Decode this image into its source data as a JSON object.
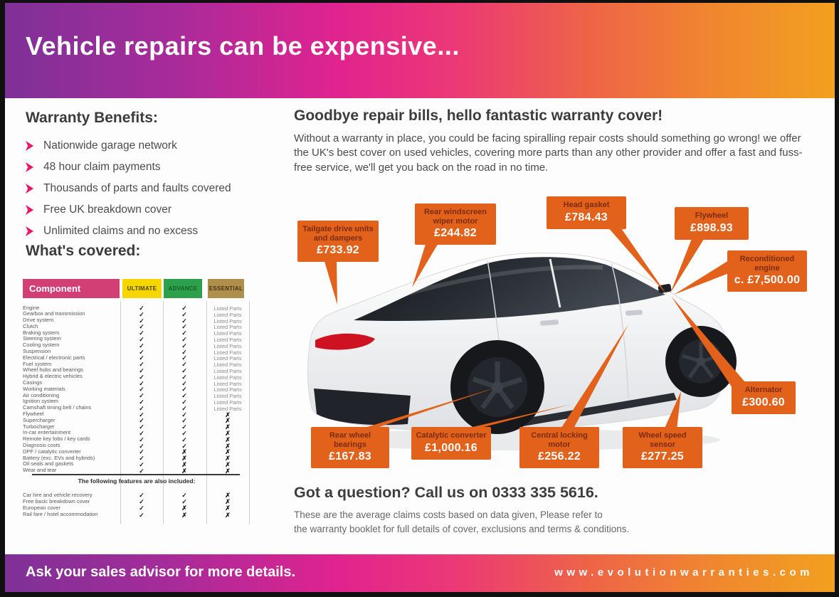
{
  "banner_top": {
    "title": "Vehicle repairs can be expensive..."
  },
  "benefits": {
    "heading": "Warranty Benefits:",
    "items": [
      "Nationwide garage network",
      "48 hour claim payments",
      "Thousands of parts and faults covered",
      "Free UK breakdown cover",
      "Unlimited claims and no excess"
    ]
  },
  "covered": {
    "heading": "What's covered:",
    "table": {
      "columns": [
        "Component",
        "ULTIMATE",
        "ADVANCE",
        "ESSENTIAL"
      ],
      "marks": {
        "check": "✓",
        "cross": "✗"
      },
      "rows": [
        [
          "Engine",
          "check",
          "check",
          "Listed Parts"
        ],
        [
          "Gearbox and transmission",
          "check",
          "check",
          "Listed Parts"
        ],
        [
          "Drive system",
          "check",
          "check",
          "Listed Parts"
        ],
        [
          "Clutch",
          "check",
          "check",
          "Listed Parts"
        ],
        [
          "Braking system",
          "check",
          "check",
          "Listed Parts"
        ],
        [
          "Steering system",
          "check",
          "check",
          "Listed Parts"
        ],
        [
          "Cooling system",
          "check",
          "check",
          "Listed Parts"
        ],
        [
          "Suspension",
          "check",
          "check",
          "Listed Parts"
        ],
        [
          "Electrical / electronic parts",
          "check",
          "check",
          "Listed Parts"
        ],
        [
          "Fuel system",
          "check",
          "check",
          "Listed Parts"
        ],
        [
          "Wheel hubs and bearings",
          "check",
          "check",
          "Listed Parts"
        ],
        [
          "Hybrid & electric vehicles",
          "check",
          "check",
          "Listed Parts"
        ],
        [
          "Casings",
          "check",
          "check",
          "Listed Parts"
        ],
        [
          "Working materials",
          "check",
          "check",
          "Listed Parts"
        ],
        [
          "Air conditioning",
          "check",
          "check",
          "Listed Parts"
        ],
        [
          "Ignition system",
          "check",
          "check",
          "Listed Parts"
        ],
        [
          "Camshaft timing belt / chains",
          "check",
          "check",
          "Listed Parts"
        ],
        [
          "Flywheel",
          "check",
          "check",
          "cross"
        ],
        [
          "Supercharger",
          "check",
          "check",
          "cross"
        ],
        [
          "Turbocharger",
          "check",
          "check",
          "cross"
        ],
        [
          "In-car entertainment",
          "check",
          "check",
          "cross"
        ],
        [
          "Remote key fobs / key cards",
          "check",
          "check",
          "cross"
        ],
        [
          "Diagnosis costs",
          "check",
          "check",
          "cross"
        ],
        [
          "DPF / catalytic converter",
          "check",
          "cross",
          "cross"
        ],
        [
          "Battery (exc. EVs and hybrids)",
          "check",
          "cross",
          "cross"
        ],
        [
          "Oil seals and gaskets",
          "check",
          "cross",
          "cross"
        ],
        [
          "Wear and tear",
          "check",
          "cross",
          "cross"
        ]
      ],
      "footer_heading": "The following features are also included:",
      "footer_rows": [
        [
          "Car hire and vehicle recovery",
          "check",
          "check",
          "cross"
        ],
        [
          "Free basic breakdown cover",
          "check",
          "check",
          "cross"
        ],
        [
          "European cover",
          "check",
          "cross",
          "cross"
        ],
        [
          "Rail fare / hotel accommodation",
          "check",
          "cross",
          "cross"
        ]
      ]
    }
  },
  "main": {
    "heading": "Goodbye repair bills, hello fantastic warranty cover!",
    "body": "Without a warranty in place, you could be facing spiralling repair costs should something go wrong! we offer the UK's best cover on used vehicles, covering more parts than any other provider and offer a fast and fuss-free service, we'll get you back on the road in no time.",
    "callouts": [
      {
        "name": "Tailgate drive units and dampers",
        "price": "£733.92"
      },
      {
        "name": "Rear windscreen wiper motor",
        "price": "£244.82"
      },
      {
        "name": "Head gasket",
        "price": "£784.43"
      },
      {
        "name": "Flywheel",
        "price": "£898.93"
      },
      {
        "name": "Reconditioned engine",
        "price": "c. £7,500.00"
      },
      {
        "name": "Alternator",
        "price": "£300.60"
      },
      {
        "name": "Rear wheel bearings",
        "price": "£167.83"
      },
      {
        "name": "Catalytic converter",
        "price": "£1,000.16"
      },
      {
        "name": "Central locking motor",
        "price": "£256.22"
      },
      {
        "name": "Wheel speed sensor",
        "price": "£277.25"
      }
    ],
    "question": "Got a question? Call us on 0333 335 5616.",
    "disclaimer_line1": "These are the average claims costs based on data given, Please refer to",
    "disclaimer_line2": "the warranty booklet for full details of cover, exclusions and terms & conditions."
  },
  "banner_bottom": {
    "left": "Ask your sales advisor for more details.",
    "right": "www.evolutionwarranties.com"
  },
  "colors": {
    "accent_orange": "#e2611b",
    "callout_title": "#7c2c10",
    "gradient_purple": "#7e3197",
    "gradient_magenta": "#e0238f",
    "gradient_orange": "#f2a01f",
    "header_pink": "#d23f74",
    "header_yellow": "#f5d600",
    "header_green": "#2ca04a",
    "header_tan": "#b08f4c",
    "bullet_pink": "#ec1566",
    "taillight_red": "#cf1222"
  }
}
